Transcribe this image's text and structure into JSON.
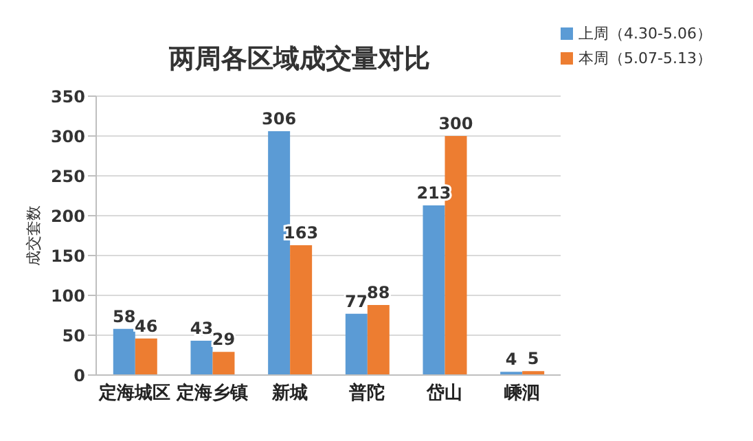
{
  "chart_data": {
    "type": "bar",
    "title": "两周各区域成交量对比",
    "ylabel": "成交套数",
    "categories": [
      "定海城区",
      "定海乡镇",
      "新城",
      "普陀",
      "岱山",
      "嵊泗"
    ],
    "series": [
      {
        "name": "上周（4.30-5.06）",
        "color": "#5b9bd5",
        "values": [
          58,
          43,
          306,
          77,
          213,
          4
        ]
      },
      {
        "name": "本周（5.07-5.13）",
        "color": "#ed7d31",
        "values": [
          46,
          29,
          163,
          88,
          300,
          5
        ]
      }
    ],
    "ylim": [
      0,
      350
    ],
    "yticks": [
      0,
      50,
      100,
      150,
      200,
      250,
      300,
      350
    ],
    "grid": "y",
    "legend": "top right",
    "data_labels": true
  }
}
